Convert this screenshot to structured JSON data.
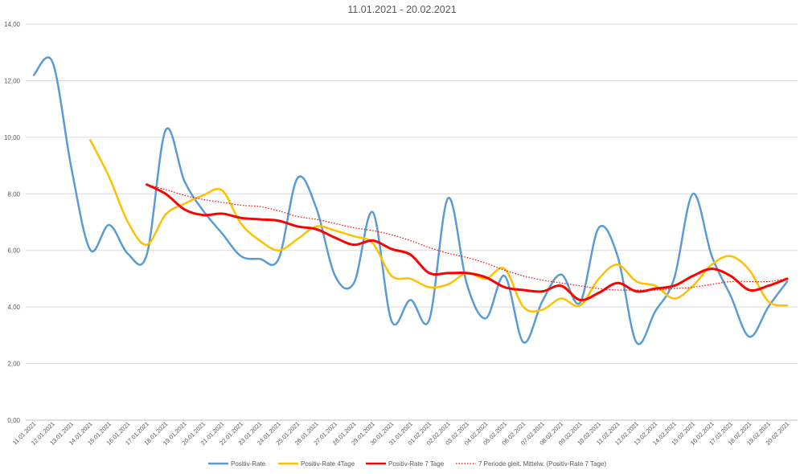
{
  "chart_data": {
    "type": "line",
    "title": "11.01.2021 - 20.02.2021",
    "xlabel": "",
    "ylabel": "",
    "ylim": [
      0,
      14
    ],
    "yticks": [
      "0,00",
      "2,00",
      "4,00",
      "6,00",
      "8,00",
      "10,00",
      "12,00",
      "14,00"
    ],
    "grid": true,
    "legend_position": "bottom",
    "categories": [
      "11.01.2021",
      "12.01.2021",
      "13.01.2021",
      "14.01.2021",
      "15.01.2021",
      "16.01.2021",
      "17.01.2021",
      "18.01.2021",
      "19.01.2021",
      "20.01.2021",
      "21.01.2021",
      "22.01.2021",
      "23.01.2021",
      "24.01.2021",
      "25.01.2021",
      "26.01.2021",
      "27.01.2021",
      "28.01.2021",
      "29.01.2021",
      "30.01.2021",
      "31.01.2021",
      "01.02.2021",
      "02.02.2021",
      "03.02.2021",
      "04.02.2021",
      "05.02.2021",
      "06.02.2021",
      "07.02.2021",
      "08.02.2021",
      "09.02.2021",
      "10.02.2021",
      "11.02.2021",
      "12.02.2021",
      "13.02.2021",
      "14.02.2021",
      "15.02.2021",
      "16.02.2021",
      "17.02.2021",
      "18.02.2021",
      "19.02.2021",
      "20.02.2021"
    ],
    "series": [
      {
        "name": "Positiv-Rate",
        "color": "#5b9bd5",
        "style": "solid",
        "values": [
          12.2,
          12.65,
          8.9,
          6.02,
          6.9,
          5.88,
          5.85,
          10.25,
          8.45,
          7.4,
          6.6,
          5.8,
          5.7,
          5.7,
          8.55,
          7.5,
          5.1,
          4.85,
          7.35,
          3.5,
          4.25,
          3.55,
          7.85,
          4.8,
          3.6,
          5.1,
          2.75,
          4.2,
          5.15,
          4.15,
          6.8,
          5.8,
          2.75,
          3.85,
          5.0,
          8.0,
          5.8,
          4.4,
          2.95,
          4.0,
          4.9
        ]
      },
      {
        "name": "Positiv-Rate 4Tage",
        "color": "#ffc000",
        "style": "solid",
        "values": [
          null,
          null,
          null,
          9.9,
          8.6,
          7.0,
          6.2,
          7.27,
          7.65,
          7.95,
          8.12,
          6.95,
          6.35,
          6.0,
          6.4,
          6.85,
          6.7,
          6.5,
          6.25,
          5.1,
          5.0,
          4.7,
          4.8,
          5.2,
          5.0,
          5.35,
          4.0,
          3.9,
          4.3,
          4.05,
          5.0,
          5.5,
          4.9,
          4.75,
          4.3,
          4.75,
          5.5,
          5.8,
          5.3,
          4.2,
          4.05
        ]
      },
      {
        "name": "Positiv-Rate 7 Tage",
        "color": "#ff0000",
        "style": "solid",
        "values": [
          null,
          null,
          null,
          null,
          null,
          null,
          8.33,
          8.0,
          7.45,
          7.25,
          7.3,
          7.15,
          7.1,
          7.05,
          6.85,
          6.75,
          6.45,
          6.2,
          6.35,
          6.05,
          5.85,
          5.2,
          5.2,
          5.2,
          5.05,
          4.7,
          4.6,
          4.55,
          4.75,
          4.25,
          4.5,
          4.85,
          4.55,
          4.65,
          4.75,
          5.1,
          5.35,
          5.1,
          4.6,
          4.75,
          5.0
        ]
      },
      {
        "name": "7 Periode gleit. Mittelw. (Positiv-Rate 7 Tage)",
        "color": "#ff0000",
        "style": "dotted",
        "values": [
          null,
          null,
          null,
          null,
          null,
          null,
          8.33,
          8.15,
          7.95,
          7.8,
          7.7,
          7.6,
          7.55,
          7.4,
          7.2,
          7.1,
          6.95,
          6.8,
          6.7,
          6.55,
          6.35,
          6.1,
          5.9,
          5.75,
          5.55,
          5.3,
          5.1,
          4.95,
          4.85,
          4.75,
          4.65,
          4.6,
          4.6,
          4.6,
          4.65,
          4.7,
          4.8,
          4.9,
          4.9,
          4.9,
          5.0
        ]
      }
    ]
  }
}
